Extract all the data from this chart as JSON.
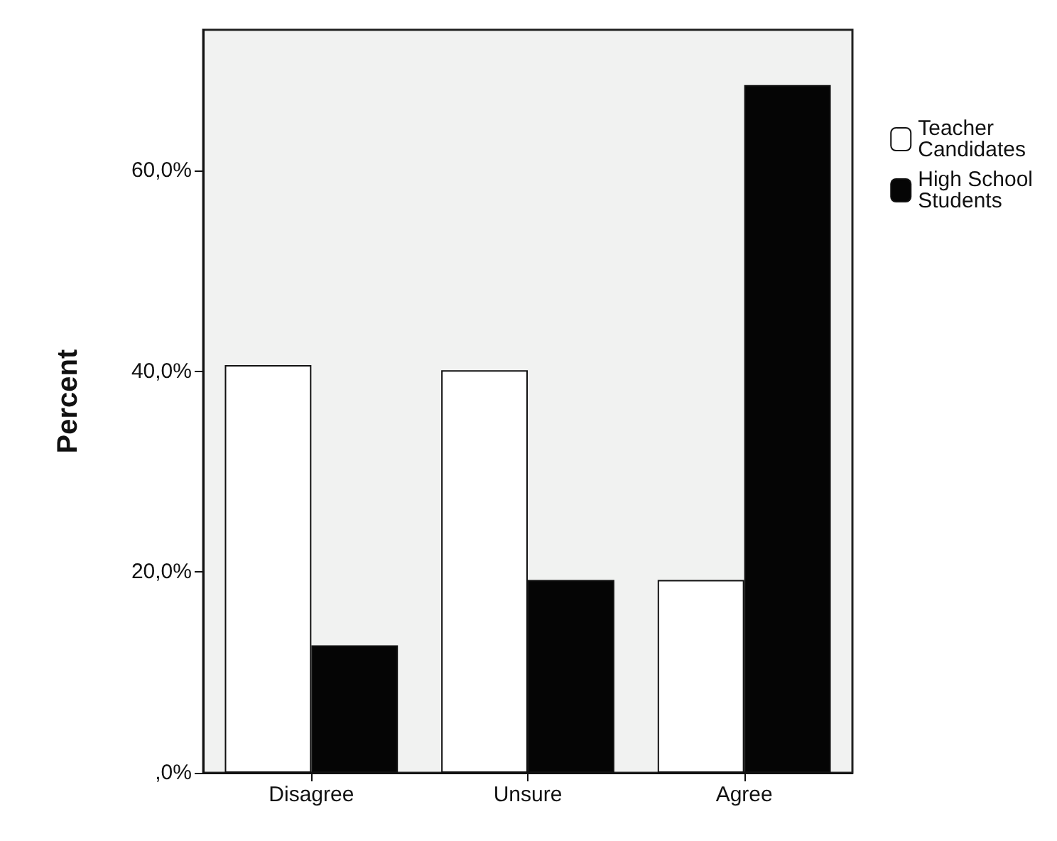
{
  "chart_data": {
    "type": "bar",
    "ylabel": "Percent",
    "categories": [
      "Disagree",
      "Unsure",
      "Agree"
    ],
    "series": [
      {
        "name": "Teacher Candidates",
        "color": "#ffffff",
        "values": [
          40.6,
          40.1,
          19.2
        ]
      },
      {
        "name": "High School Students",
        "color": "#050505",
        "values": [
          12.7,
          19.2,
          68.5
        ]
      }
    ],
    "ylim": [
      0,
      74
    ],
    "yticks": [
      {
        "value": 0,
        "label": ",0%"
      },
      {
        "value": 20,
        "label": "20,0%"
      },
      {
        "value": 40,
        "label": "40,0%"
      },
      {
        "value": 60,
        "label": "60,0%"
      }
    ],
    "grid": false,
    "legend": "top right"
  }
}
